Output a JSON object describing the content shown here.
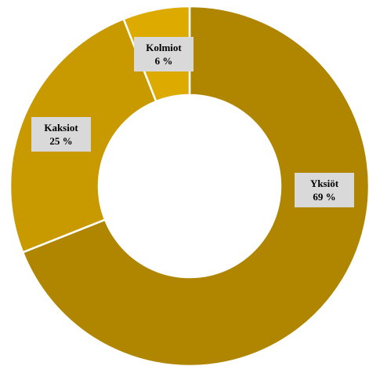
{
  "chart_data": {
    "type": "pie",
    "subtype": "donut",
    "title": "",
    "slices": [
      {
        "label": "Yksiöt",
        "value": 69,
        "value_label": "69 %",
        "color": "#b08500"
      },
      {
        "label": "Kaksiot",
        "value": 25,
        "value_label": "25 %",
        "color": "#c99a00"
      },
      {
        "label": "Kolmiot",
        "value": 6,
        "value_label": "6 %",
        "color": "#ddab00"
      }
    ],
    "legend": "none",
    "label_background": "#d9d9d9"
  }
}
